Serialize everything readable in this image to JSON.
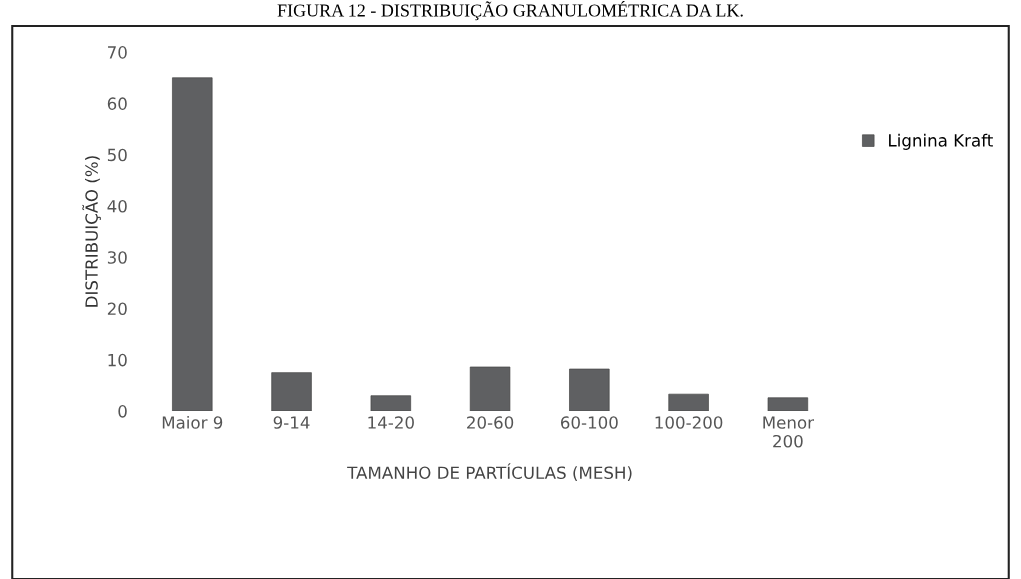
{
  "chart_data": {
    "type": "bar",
    "title": "FIGURA 12 - DISTRIBUIÇÃO GRANULOMÉTRICA DA LK.",
    "xlabel": "TAMANHO DE PARTÍCULAS (MESH)",
    "ylabel": "DISTRIBUIÇÃO (%)",
    "categories": [
      "Maior 9",
      "9-14",
      "14-20",
      "20-60",
      "60-100",
      "100-200",
      "Menor\n200"
    ],
    "series": [
      {
        "name": "Lignina Kraft",
        "color": "#5f6062",
        "values": [
          65,
          7.5,
          3,
          8.6,
          8.2,
          3.3,
          2.6
        ]
      }
    ],
    "ylim": [
      0,
      70
    ],
    "yticks": [
      0,
      10,
      20,
      30,
      40,
      50,
      60,
      70
    ],
    "grid": false,
    "legend": "right"
  }
}
